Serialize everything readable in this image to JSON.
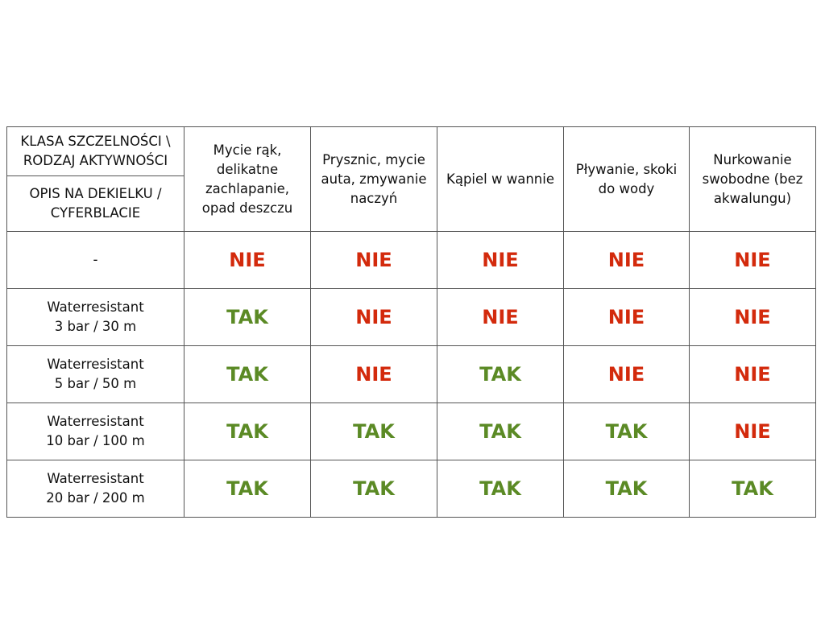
{
  "header": {
    "corner_top": "KLASA SZCZELNOŚCI \\ RODZAJ AKTYWNOŚCI",
    "corner_bottom": "OPIS NA DEKIELKU / CYFERBLACIE",
    "activities": [
      "Mycie rąk, delikatne zachlapanie, opad deszczu",
      "Prysznic, mycie auta, zmywanie naczyń",
      "Kąpiel w wannie",
      "Pływanie, skoki do wody",
      "Nurkowanie swobodne (bez akwalungu)"
    ]
  },
  "rows": [
    {
      "label": "-",
      "values": [
        "NIE",
        "NIE",
        "NIE",
        "NIE",
        "NIE"
      ]
    },
    {
      "label": "Waterresistant\n3 bar / 30 m",
      "values": [
        "TAK",
        "NIE",
        "NIE",
        "NIE",
        "NIE"
      ]
    },
    {
      "label": "Waterresistant\n5 bar /  50 m",
      "values": [
        "TAK",
        "NIE",
        "TAK",
        "NIE",
        "NIE"
      ]
    },
    {
      "label": "Waterresistant\n10 bar / 100 m",
      "values": [
        "TAK",
        "TAK",
        "TAK",
        "TAK",
        "NIE"
      ]
    },
    {
      "label": "Waterresistant\n20 bar / 200 m",
      "values": [
        "TAK",
        "TAK",
        "TAK",
        "TAK",
        "TAK"
      ]
    }
  ],
  "colors": {
    "yes": "#5b8a25",
    "no": "#d32a0c",
    "border": "#555555"
  }
}
